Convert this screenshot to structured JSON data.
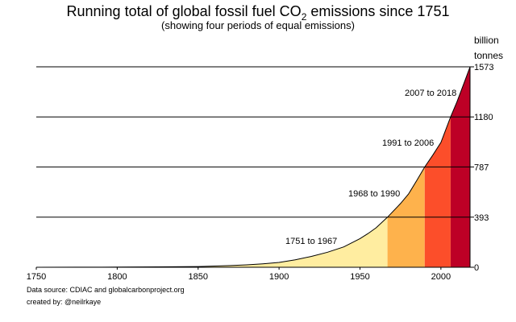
{
  "chart_data": {
    "type": "area",
    "title_main": "Running total of global fossil fuel CO",
    "title_sub2": "2",
    "title_end": " emissions since 1751",
    "subtitle": "(showing four periods of equal emissions)",
    "ylabel_line1": "billion",
    "ylabel_line2": "tonnes",
    "xlim": [
      1750,
      2018
    ],
    "ylim": [
      0,
      1573
    ],
    "x_ticks": [
      "1750",
      "1800",
      "1850",
      "1900",
      "1950",
      "2000"
    ],
    "y_ticks": [
      "0",
      "393",
      "787",
      "1180",
      "1573"
    ],
    "grid": "horizontal lines at y ticks",
    "series": {
      "x": [
        1751,
        1775,
        1800,
        1825,
        1850,
        1870,
        1880,
        1890,
        1900,
        1910,
        1920,
        1930,
        1940,
        1950,
        1955,
        1960,
        1967,
        1975,
        1980,
        1985,
        1990,
        1995,
        2000,
        2006,
        2010,
        2015,
        2018
      ],
      "y": [
        0,
        0.5,
        1,
        3,
        6,
        13,
        19,
        27,
        38,
        58,
        85,
        118,
        160,
        225,
        265,
        310,
        393,
        500,
        575,
        680,
        787,
        880,
        980,
        1180,
        1300,
        1470,
        1573
      ]
    },
    "periods": [
      {
        "label": "1751 to 1967",
        "from": 1751,
        "to": 1967,
        "color": "#FFEDA0"
      },
      {
        "label": "1968 to 1990",
        "from": 1967,
        "to": 1990,
        "color": "#FEB24C"
      },
      {
        "label": "1991 to 2006",
        "from": 1990,
        "to": 2006,
        "color": "#FC4E2A"
      },
      {
        "label": "2007 to 2018",
        "from": 2006,
        "to": 2018,
        "color": "#BD0026"
      }
    ]
  },
  "footer": {
    "source": "Data source: CDIAC and globalcarbonproject.org",
    "credit": "created by: @neilrkaye"
  }
}
